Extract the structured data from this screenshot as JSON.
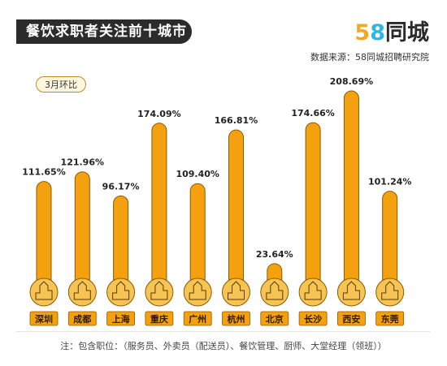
{
  "header": {
    "title": "餐饮求职者关注前十城市",
    "logo_digit_5": "5",
    "logo_digit_8": "8",
    "logo_text": "同城",
    "source": "数据来源：58同城招聘研究院"
  },
  "badge": "3月环比",
  "footer": {
    "note": "注：包含职位：（服务员、外卖员（配送员）、餐饮管理、厨师、大堂经理（领班））"
  },
  "colors": {
    "bar": "#f5a10f",
    "bar_outline": "#8a5a00",
    "city_circle": "#f5c453",
    "city_label_bg": "#f5a10f"
  },
  "chart_data": {
    "type": "bar",
    "title": "餐饮求职者关注前十城市",
    "categories": [
      "深圳",
      "成都",
      "上海",
      "重庆",
      "广州",
      "杭州",
      "北京",
      "长沙",
      "西安",
      "东莞"
    ],
    "values": [
      111.65,
      121.96,
      96.17,
      174.09,
      109.4,
      166.81,
      23.64,
      174.66,
      208.69,
      101.24
    ],
    "data_labels": [
      "111.65%",
      "121.96%",
      "96.17%",
      "174.09%",
      "109.40%",
      "166.81%",
      "23.64%",
      "174.66%",
      "208.69%",
      "101.24%"
    ],
    "unit": "%",
    "ylim": [
      0,
      230
    ],
    "grid": false,
    "legend": "none"
  }
}
